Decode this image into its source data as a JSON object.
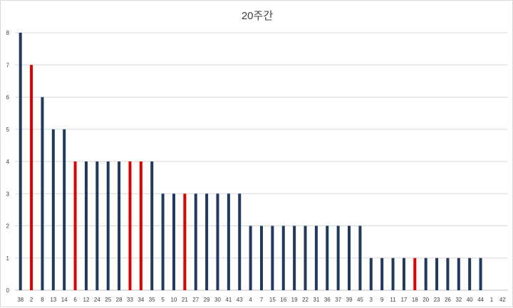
{
  "chart_data": {
    "type": "bar",
    "title": "20주간",
    "xlabel": "",
    "ylabel": "",
    "ylim": [
      0,
      8
    ],
    "yticks": [
      0,
      1,
      2,
      3,
      4,
      5,
      6,
      7,
      8
    ],
    "grid": true,
    "legend": "none",
    "categories": [
      "38",
      "2",
      "8",
      "13",
      "14",
      "6",
      "12",
      "24",
      "25",
      "28",
      "33",
      "34",
      "35",
      "5",
      "10",
      "21",
      "27",
      "29",
      "30",
      "41",
      "43",
      "4",
      "7",
      "15",
      "16",
      "19",
      "22",
      "31",
      "36",
      "37",
      "39",
      "45",
      "3",
      "9",
      "11",
      "17",
      "18",
      "20",
      "23",
      "26",
      "32",
      "40",
      "44",
      "1",
      "42"
    ],
    "values": [
      8,
      7,
      6,
      5,
      5,
      4,
      4,
      4,
      4,
      4,
      4,
      4,
      4,
      3,
      3,
      3,
      3,
      3,
      3,
      3,
      3,
      2,
      2,
      2,
      2,
      2,
      2,
      2,
      2,
      2,
      2,
      2,
      1,
      1,
      1,
      1,
      1,
      1,
      1,
      1,
      1,
      1,
      1,
      0,
      0
    ],
    "highlighted_categories": [
      "2",
      "6",
      "33",
      "34",
      "21",
      "18"
    ],
    "colors": {
      "bar": "#1f3864",
      "highlight": "#e00000",
      "grid": "#d9d9d9"
    }
  }
}
